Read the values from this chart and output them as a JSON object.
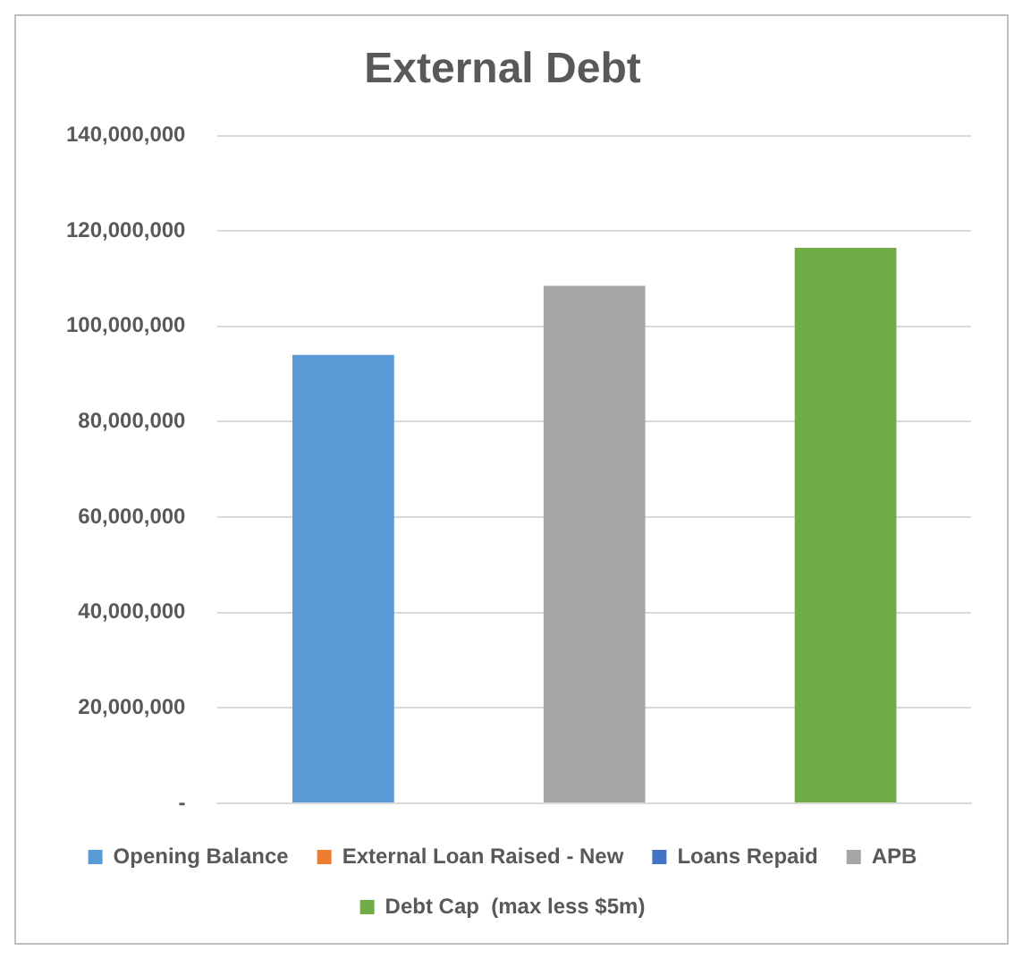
{
  "chart_data": {
    "type": "bar",
    "title": "External Debt",
    "categories": [
      null,
      null,
      null
    ],
    "series": [
      {
        "name": "Opening Balance",
        "color": "#5b9bd5",
        "values": [
          94000000,
          null,
          null
        ]
      },
      {
        "name": "External Loan Raised - New",
        "color": "#ed7d31",
        "values": [
          null,
          null,
          null
        ]
      },
      {
        "name": "Loans Repaid",
        "color": "#4472c4",
        "values": [
          null,
          null,
          null
        ]
      },
      {
        "name": "APB",
        "color": "#a5a5a5",
        "values": [
          null,
          108500000,
          null
        ]
      },
      {
        "name": "Debt Cap  (max less $5m)",
        "color": "#70ad47",
        "values": [
          null,
          null,
          116500000
        ]
      }
    ],
    "ylim": [
      0,
      140000000
    ],
    "yticks": [
      {
        "value": 0,
        "label": "-"
      },
      {
        "value": 20000000,
        "label": "20,000,000"
      },
      {
        "value": 40000000,
        "label": "40,000,000"
      },
      {
        "value": 60000000,
        "label": "60,000,000"
      },
      {
        "value": 80000000,
        "label": "80,000,000"
      },
      {
        "value": 100000000,
        "label": "100,000,000"
      },
      {
        "value": 120000000,
        "label": "120,000,000"
      },
      {
        "value": 140000000,
        "label": "140,000,000"
      }
    ],
    "grid": "y",
    "legend": "bottom"
  }
}
